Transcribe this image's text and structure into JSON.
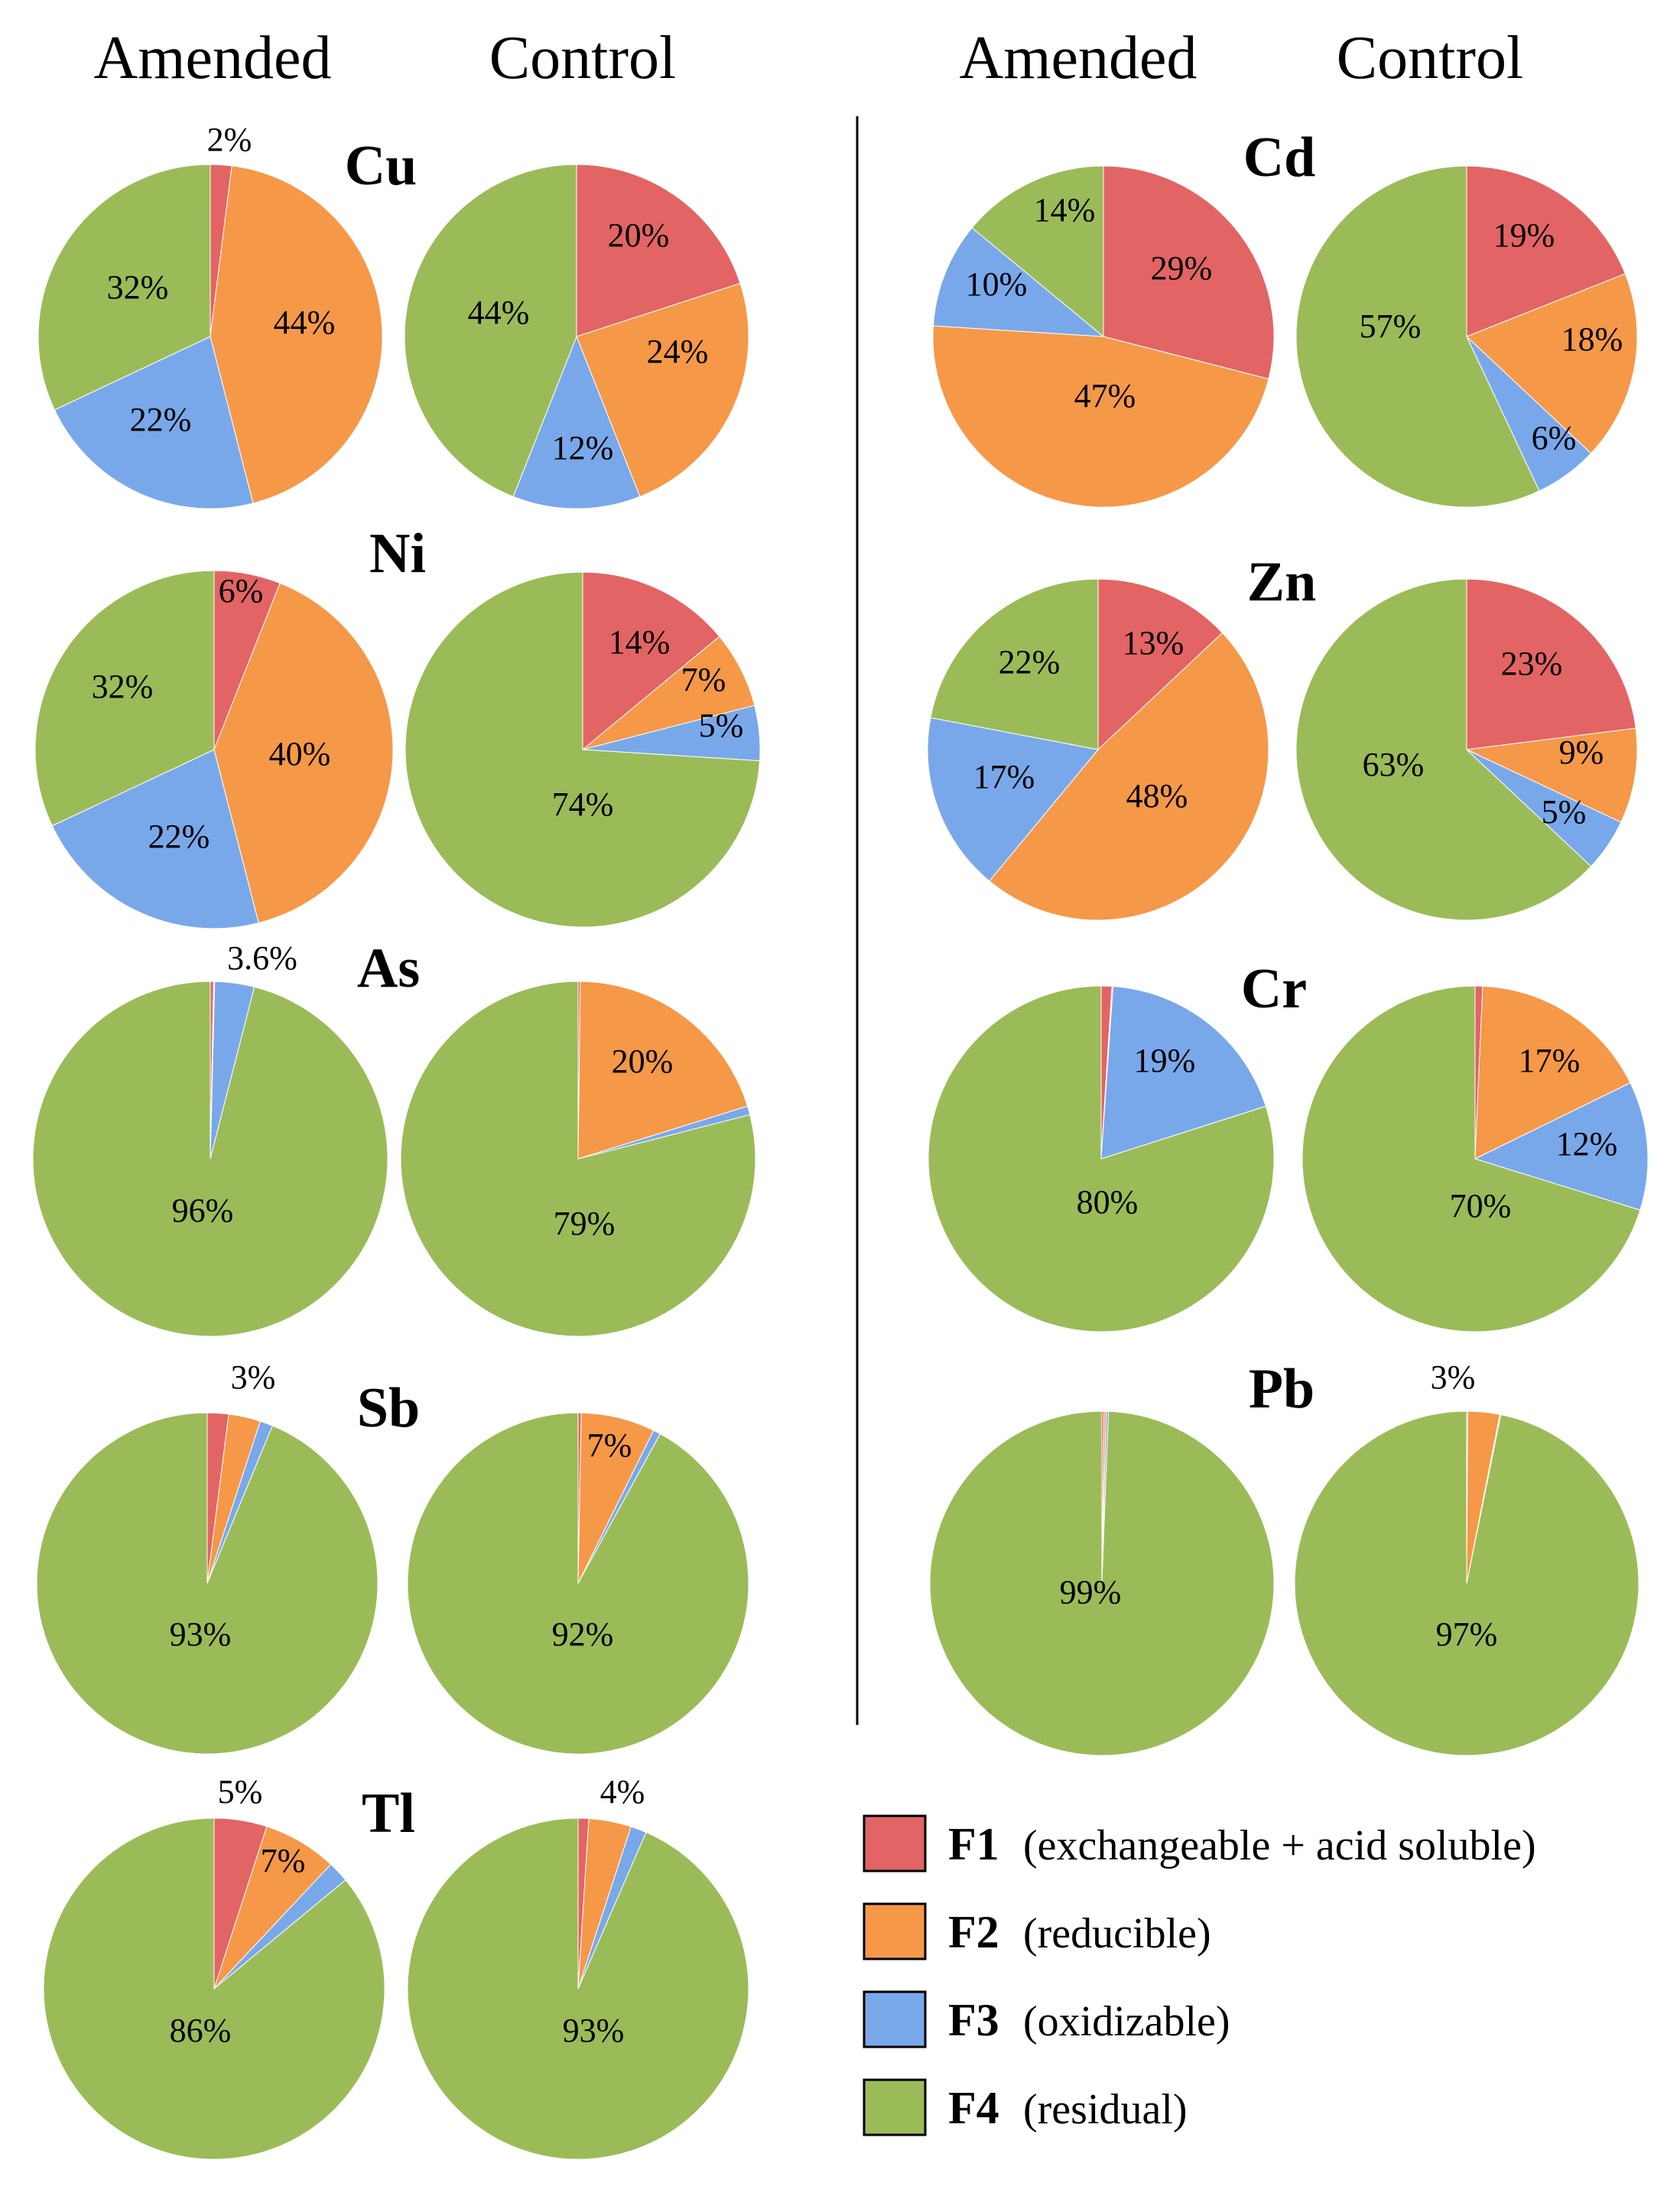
{
  "headers": {
    "left_amended": "Amended",
    "left_control": "Control",
    "right_amended": "Amended",
    "right_control": "Control"
  },
  "colors": {
    "F1": "#e36464",
    "F2": "#f59848",
    "F3": "#79a8ea",
    "F4": "#9bbb58"
  },
  "legend": [
    {
      "code": "F1",
      "desc": "(exchangeable + acid soluble)"
    },
    {
      "code": "F2",
      "desc": "(reducible)"
    },
    {
      "code": "F3",
      "desc": "(oxidizable)"
    },
    {
      "code": "F4",
      "desc": "(residual)"
    }
  ],
  "chart_data": [
    {
      "type": "pie",
      "element": "Cu",
      "condition": "Amended",
      "categories": [
        "F1",
        "F2",
        "F3",
        "F4"
      ],
      "values": [
        2,
        44,
        22,
        32
      ],
      "labels": [
        "2%",
        "44%",
        "22%",
        "32%"
      ]
    },
    {
      "type": "pie",
      "element": "Cu",
      "condition": "Control",
      "categories": [
        "F1",
        "F2",
        "F3",
        "F4"
      ],
      "values": [
        20,
        24,
        12,
        44
      ],
      "labels": [
        "20%",
        "24%",
        "12%",
        "44%"
      ]
    },
    {
      "type": "pie",
      "element": "Ni",
      "condition": "Amended",
      "categories": [
        "F1",
        "F2",
        "F3",
        "F4"
      ],
      "values": [
        6,
        40,
        22,
        32
      ],
      "labels": [
        "6%",
        "40%",
        "22%",
        "32%"
      ]
    },
    {
      "type": "pie",
      "element": "Ni",
      "condition": "Control",
      "categories": [
        "F1",
        "F2",
        "F3",
        "F4"
      ],
      "values": [
        14,
        7,
        5,
        74
      ],
      "labels": [
        "14%",
        "7%",
        "5%",
        "74%"
      ]
    },
    {
      "type": "pie",
      "element": "As",
      "condition": "Amended",
      "categories": [
        "F1",
        "F2",
        "F3",
        "F4"
      ],
      "values": [
        0.3,
        0.1,
        3.6,
        96
      ],
      "labels": [
        "",
        "",
        "3.6%",
        "96%"
      ]
    },
    {
      "type": "pie",
      "element": "As",
      "condition": "Control",
      "categories": [
        "F1",
        "F2",
        "F3",
        "F4"
      ],
      "values": [
        0.2,
        20,
        0.8,
        79
      ],
      "labels": [
        "",
        "20%",
        "",
        "79%"
      ]
    },
    {
      "type": "pie",
      "element": "Sb",
      "condition": "Amended",
      "categories": [
        "F1",
        "F2",
        "F3",
        "F4"
      ],
      "values": [
        2,
        3,
        1.2,
        93
      ],
      "labels": [
        "",
        "3%",
        "",
        "93%"
      ]
    },
    {
      "type": "pie",
      "element": "Sb",
      "condition": "Control",
      "categories": [
        "F1",
        "F2",
        "F3",
        "F4"
      ],
      "values": [
        0.3,
        7,
        0.7,
        92
      ],
      "labels": [
        "",
        "7%",
        "",
        "92%"
      ]
    },
    {
      "type": "pie",
      "element": "Tl",
      "condition": "Amended",
      "categories": [
        "F1",
        "F2",
        "F3",
        "F4"
      ],
      "values": [
        5,
        7,
        2,
        86
      ],
      "labels": [
        "5%",
        "7%",
        "",
        "86%"
      ]
    },
    {
      "type": "pie",
      "element": "Tl",
      "condition": "Control",
      "categories": [
        "F1",
        "F2",
        "F3",
        "F4"
      ],
      "values": [
        1,
        4,
        1.5,
        93
      ],
      "labels": [
        "",
        "4%",
        "",
        "93%"
      ]
    },
    {
      "type": "pie",
      "element": "Cd",
      "condition": "Amended",
      "categories": [
        "F1",
        "F2",
        "F3",
        "F4"
      ],
      "values": [
        29,
        47,
        10,
        14
      ],
      "labels": [
        "29%",
        "47%",
        "10%",
        "14%"
      ]
    },
    {
      "type": "pie",
      "element": "Cd",
      "condition": "Control",
      "categories": [
        "F1",
        "F2",
        "F3",
        "F4"
      ],
      "values": [
        19,
        18,
        6,
        57
      ],
      "labels": [
        "19%",
        "18%",
        "6%",
        "57%"
      ]
    },
    {
      "type": "pie",
      "element": "Zn",
      "condition": "Amended",
      "categories": [
        "F1",
        "F2",
        "F3",
        "F4"
      ],
      "values": [
        13,
        48,
        17,
        22
      ],
      "labels": [
        "13%",
        "48%",
        "17%",
        "22%"
      ]
    },
    {
      "type": "pie",
      "element": "Zn",
      "condition": "Control",
      "categories": [
        "F1",
        "F2",
        "F3",
        "F4"
      ],
      "values": [
        23,
        9,
        5,
        63
      ],
      "labels": [
        "23%",
        "9%",
        "5%",
        "63%"
      ]
    },
    {
      "type": "pie",
      "element": "Cr",
      "condition": "Amended",
      "categories": [
        "F1",
        "F2",
        "F3",
        "F4"
      ],
      "values": [
        1,
        0.1,
        19,
        80
      ],
      "labels": [
        "",
        "",
        "19%",
        "80%"
      ]
    },
    {
      "type": "pie",
      "element": "Cr",
      "condition": "Control",
      "categories": [
        "F1",
        "F2",
        "F3",
        "F4"
      ],
      "values": [
        0.7,
        17,
        12,
        70
      ],
      "labels": [
        "",
        "17%",
        "12%",
        "70%"
      ]
    },
    {
      "type": "pie",
      "element": "Pb",
      "condition": "Amended",
      "categories": [
        "F1",
        "F2",
        "F3",
        "F4"
      ],
      "values": [
        0.2,
        0.2,
        0.2,
        99
      ],
      "labels": [
        "",
        "",
        "",
        "99%"
      ]
    },
    {
      "type": "pie",
      "element": "Pb",
      "condition": "Control",
      "categories": [
        "F1",
        "F2",
        "F3",
        "F4"
      ],
      "values": [
        0.1,
        3,
        0.1,
        97
      ],
      "labels": [
        "",
        "3%",
        "",
        "97%"
      ]
    }
  ]
}
